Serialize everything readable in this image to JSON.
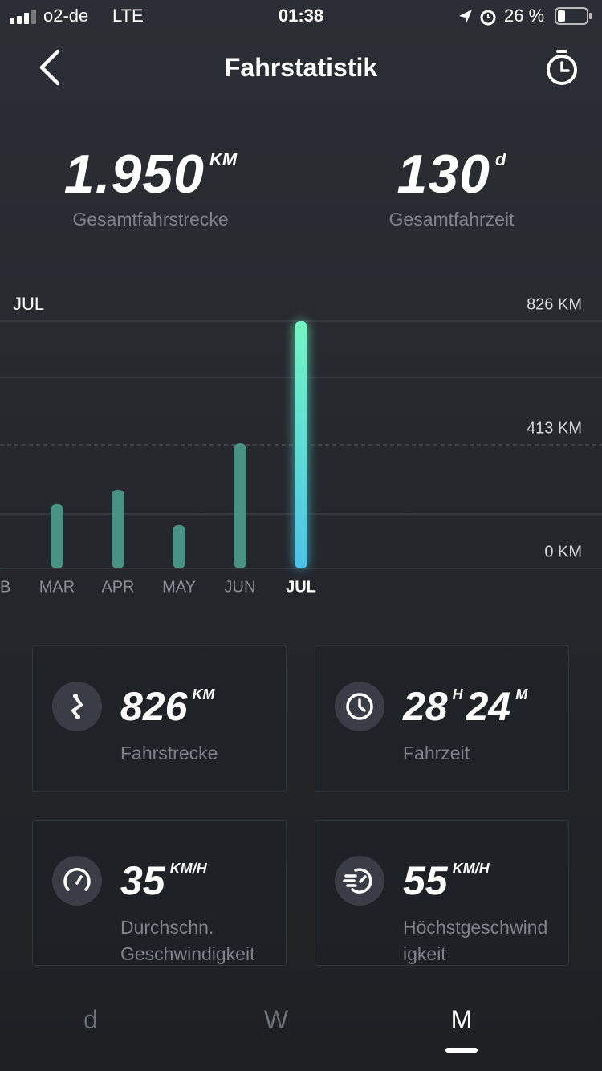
{
  "status_bar": {
    "carrier": "o2-de",
    "network": "LTE",
    "time": "01:38",
    "battery": "26 %"
  },
  "header": {
    "title": "Fahrstatistik"
  },
  "summary": [
    {
      "value": "1.950",
      "unit": "KM",
      "label": "Gesamtfahrstrecke"
    },
    {
      "value": "130",
      "unit": "d",
      "label": "Gesamtfahrzeit"
    }
  ],
  "chart_data": {
    "type": "bar",
    "period_label": "JUL",
    "categories": [
      "B",
      "MAR",
      "APR",
      "MAY",
      "JUN",
      "JUL"
    ],
    "values": [
      2,
      215,
      263,
      145,
      418,
      826
    ],
    "color": "#4e9d8b",
    "highlight_index": 5,
    "highlight_colors": [
      "#74f5c2",
      "#4cc2e6"
    ],
    "ylim": [
      0,
      826
    ],
    "yticks": [
      {
        "value": 0,
        "label": "0 KM"
      },
      {
        "value": 413,
        "label": "413 KM"
      },
      {
        "value": 826,
        "label": "826 KM"
      }
    ],
    "grid": true
  },
  "cards": [
    {
      "parts": [
        {
          "value": "826",
          "unit": "KM"
        }
      ],
      "label_lines": [
        "Fahrstrecke"
      ]
    },
    {
      "parts": [
        {
          "value": "28",
          "unit": "H"
        },
        {
          "value": "24",
          "unit": "M"
        }
      ],
      "label_lines": [
        "Fahrzeit"
      ]
    },
    {
      "parts": [
        {
          "value": "35",
          "unit": "KM/H"
        }
      ],
      "label_lines": [
        "Durchschn.",
        "Geschwindigkeit"
      ]
    },
    {
      "parts": [
        {
          "value": "55",
          "unit": "KM/H"
        }
      ],
      "label_lines": [
        "Höchstgeschwind",
        "igkeit"
      ]
    }
  ],
  "tabs": [
    "d",
    "W",
    "M"
  ],
  "active_tab": 2
}
